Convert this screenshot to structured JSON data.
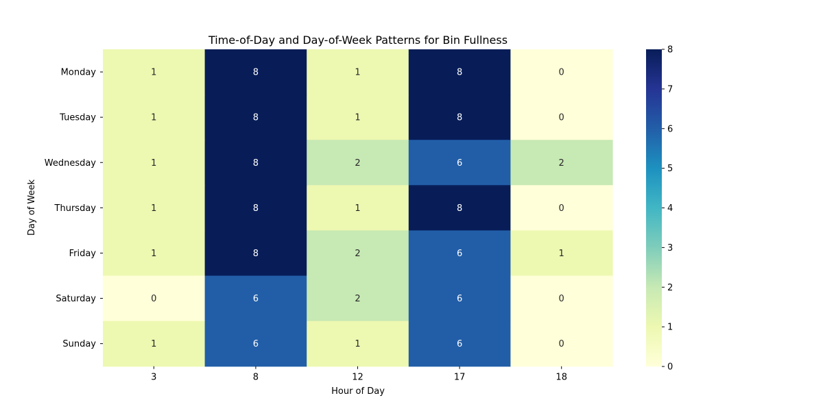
{
  "chart_data": {
    "type": "heatmap",
    "title": "Time-of-Day and Day-of-Week Patterns for Bin Fullness",
    "xlabel": "Hour of Day",
    "ylabel": "Day of Week",
    "x_categories": [
      "3",
      "8",
      "12",
      "17",
      "18"
    ],
    "y_categories": [
      "Monday",
      "Tuesday",
      "Wednesday",
      "Thursday",
      "Friday",
      "Saturday",
      "Sunday"
    ],
    "values": [
      [
        1,
        8,
        1,
        8,
        0
      ],
      [
        1,
        8,
        1,
        8,
        0
      ],
      [
        1,
        8,
        2,
        6,
        2
      ],
      [
        1,
        8,
        1,
        8,
        0
      ],
      [
        1,
        8,
        2,
        6,
        1
      ],
      [
        0,
        6,
        2,
        6,
        0
      ],
      [
        1,
        6,
        1,
        6,
        0
      ]
    ],
    "colorscale": "YlGnBu",
    "colorbar": {
      "min": 0,
      "max": 8,
      "ticks": [
        "0",
        "1",
        "2",
        "3",
        "4",
        "5",
        "6",
        "7",
        "8"
      ]
    },
    "annotated": true
  }
}
